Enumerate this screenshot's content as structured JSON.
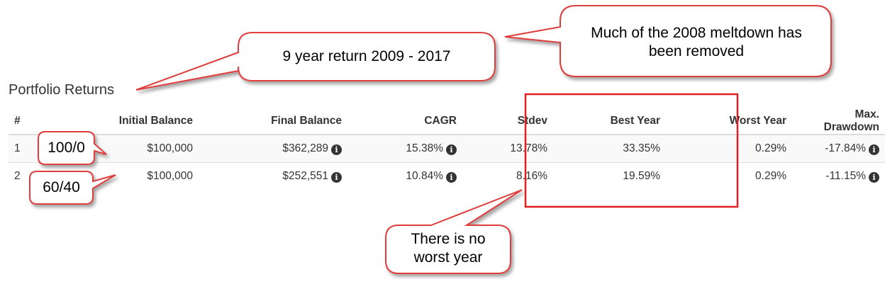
{
  "section_title": "Portfolio Returns",
  "table": {
    "headers": [
      "#",
      "Initial Balance",
      "Final Balance",
      "CAGR",
      "Stdev",
      "Best Year",
      "Worst Year",
      "Max. Drawdown"
    ],
    "rows": [
      {
        "index": "1",
        "initial_balance": "$100,000",
        "final_balance": "$362,289",
        "cagr": "15.38%",
        "stdev": "13.78%",
        "best_year": "33.35%",
        "worst_year": "0.29%",
        "max_drawdown": "-17.84%"
      },
      {
        "index": "2",
        "initial_balance": "$100,000",
        "final_balance": "$252,551",
        "cagr": "10.84%",
        "stdev": "8.16%",
        "best_year": "19.59%",
        "worst_year": "0.29%",
        "max_drawdown": "-11.15%"
      }
    ]
  },
  "callouts": {
    "return_period": "9 year return 2009 - 2017",
    "meltdown_removed": "Much of the 2008 meltdown has been removed",
    "allocation_1": "100/0",
    "allocation_2": "60/40",
    "no_worst_year": "There is no worst year"
  },
  "icons": {
    "info": "info-circle-icon"
  },
  "colors": {
    "callout_border": "#e03c3c",
    "highlight_box": "#e02020",
    "text": "#333333"
  }
}
